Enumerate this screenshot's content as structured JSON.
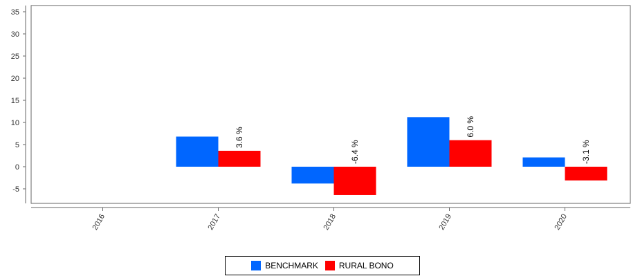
{
  "chart_data": {
    "type": "bar",
    "title": "",
    "xlabel": "",
    "ylabel": "",
    "categories": [
      "2016",
      "2017",
      "2018",
      "2019",
      "2020"
    ],
    "ylim": [
      -8,
      36
    ],
    "yticks": [
      "-5",
      "0",
      "5",
      "10",
      "15",
      "20",
      "25",
      "30",
      "35"
    ],
    "grid": false,
    "legend_position": "bottom",
    "series": [
      {
        "name": "BENCHMARK",
        "color": "#0066ff",
        "values": [
          null,
          6.8,
          -3.8,
          11.2,
          2.1
        ]
      },
      {
        "name": "RURAL BONO",
        "color": "#ff0000",
        "values": [
          null,
          3.6,
          -6.4,
          6.0,
          -3.1
        ],
        "data_labels": [
          "",
          "3.6 %",
          "-6.4 %",
          "6.0 %",
          "-3.1 %"
        ]
      }
    ]
  }
}
